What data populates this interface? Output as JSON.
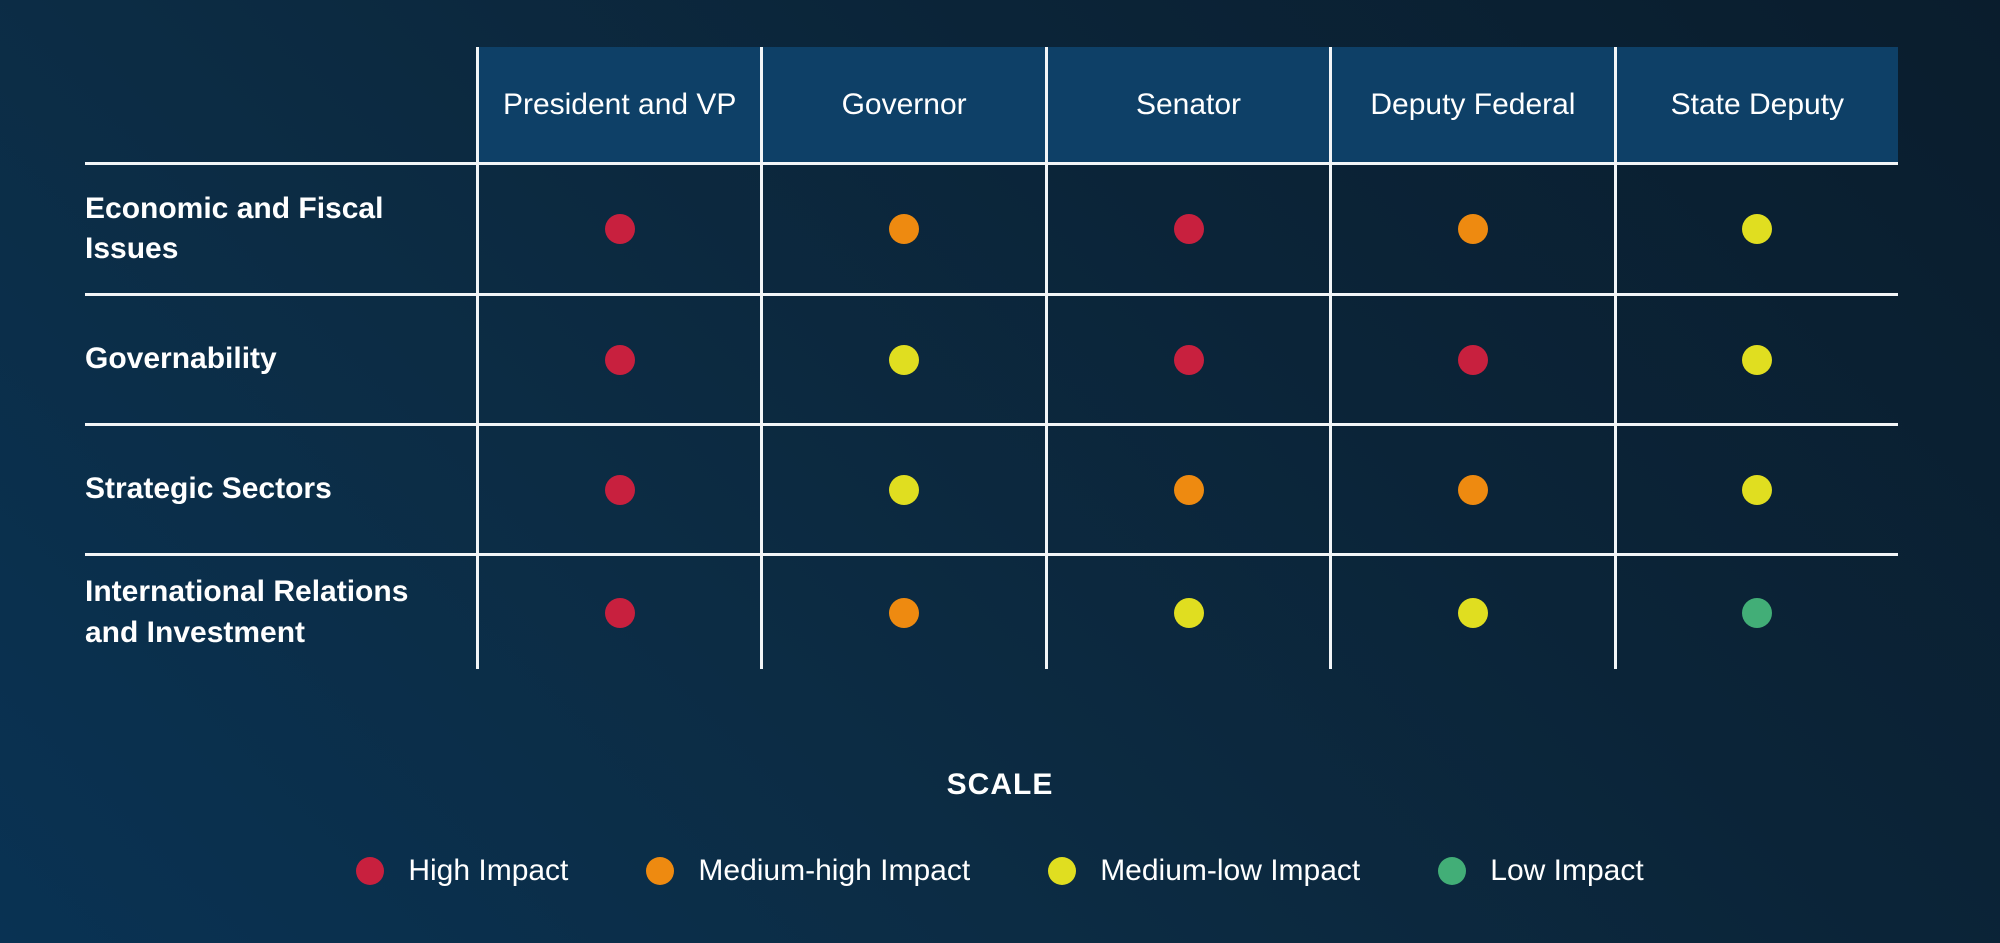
{
  "table": {
    "columns": [
      "President and VP",
      "Governor",
      "Senator",
      "Deputy Federal",
      "State Deputy"
    ],
    "rows": [
      {
        "label": "Economic and Fiscal Issues",
        "impacts": [
          "high",
          "medium-high",
          "high",
          "medium-high",
          "medium-low"
        ]
      },
      {
        "label": "Governability",
        "impacts": [
          "high",
          "medium-low",
          "high",
          "high",
          "medium-low"
        ]
      },
      {
        "label": "Strategic Sectors",
        "impacts": [
          "high",
          "medium-low",
          "medium-high",
          "medium-high",
          "medium-low"
        ]
      },
      {
        "label": "International Relations and Investment",
        "impacts": [
          "high",
          "medium-high",
          "medium-low",
          "medium-low",
          "low"
        ]
      }
    ]
  },
  "impact_colors": {
    "high": "#c8203e",
    "medium-high": "#ee8a10",
    "medium-low": "#e0de20",
    "low": "#42ae77"
  },
  "colors": {
    "background_dark": "#0a1d2d",
    "background_light": "#093253",
    "header_background": "#0e4067",
    "grid_line": "#f2f5f7",
    "text": "#ffffff"
  },
  "legend": {
    "title": "SCALE",
    "items": [
      {
        "key": "high",
        "label": "High Impact",
        "color": "#c8203e"
      },
      {
        "key": "medium-high",
        "label": "Medium-high Impact",
        "color": "#ee8a10"
      },
      {
        "key": "medium-low",
        "label": "Medium-low Impact",
        "color": "#e0de20"
      },
      {
        "key": "low",
        "label": "Low Impact",
        "color": "#42ae77"
      }
    ]
  },
  "chart_data": {
    "type": "heatmap",
    "title": "",
    "columns": [
      "President and VP",
      "Governor",
      "Senator",
      "Deputy Federal",
      "State Deputy"
    ],
    "rows": [
      "Economic and Fiscal Issues",
      "Governability",
      "Strategic Sectors",
      "International Relations and Investment"
    ],
    "values": [
      [
        "High Impact",
        "Medium-high Impact",
        "High Impact",
        "Medium-high Impact",
        "Medium-low Impact"
      ],
      [
        "High Impact",
        "Medium-low Impact",
        "High Impact",
        "High Impact",
        "Medium-low Impact"
      ],
      [
        "High Impact",
        "Medium-low Impact",
        "Medium-high Impact",
        "Medium-high Impact",
        "Medium-low Impact"
      ],
      [
        "High Impact",
        "Medium-high Impact",
        "Medium-low Impact",
        "Medium-low Impact",
        "Low Impact"
      ]
    ],
    "legend": {
      "title": "SCALE",
      "position": "bottom",
      "entries": [
        {
          "label": "High Impact",
          "color": "#c8203e"
        },
        {
          "label": "Medium-high Impact",
          "color": "#ee8a10"
        },
        {
          "label": "Medium-low Impact",
          "color": "#e0de20"
        },
        {
          "label": "Low Impact",
          "color": "#42ae77"
        }
      ]
    },
    "grid": true
  }
}
